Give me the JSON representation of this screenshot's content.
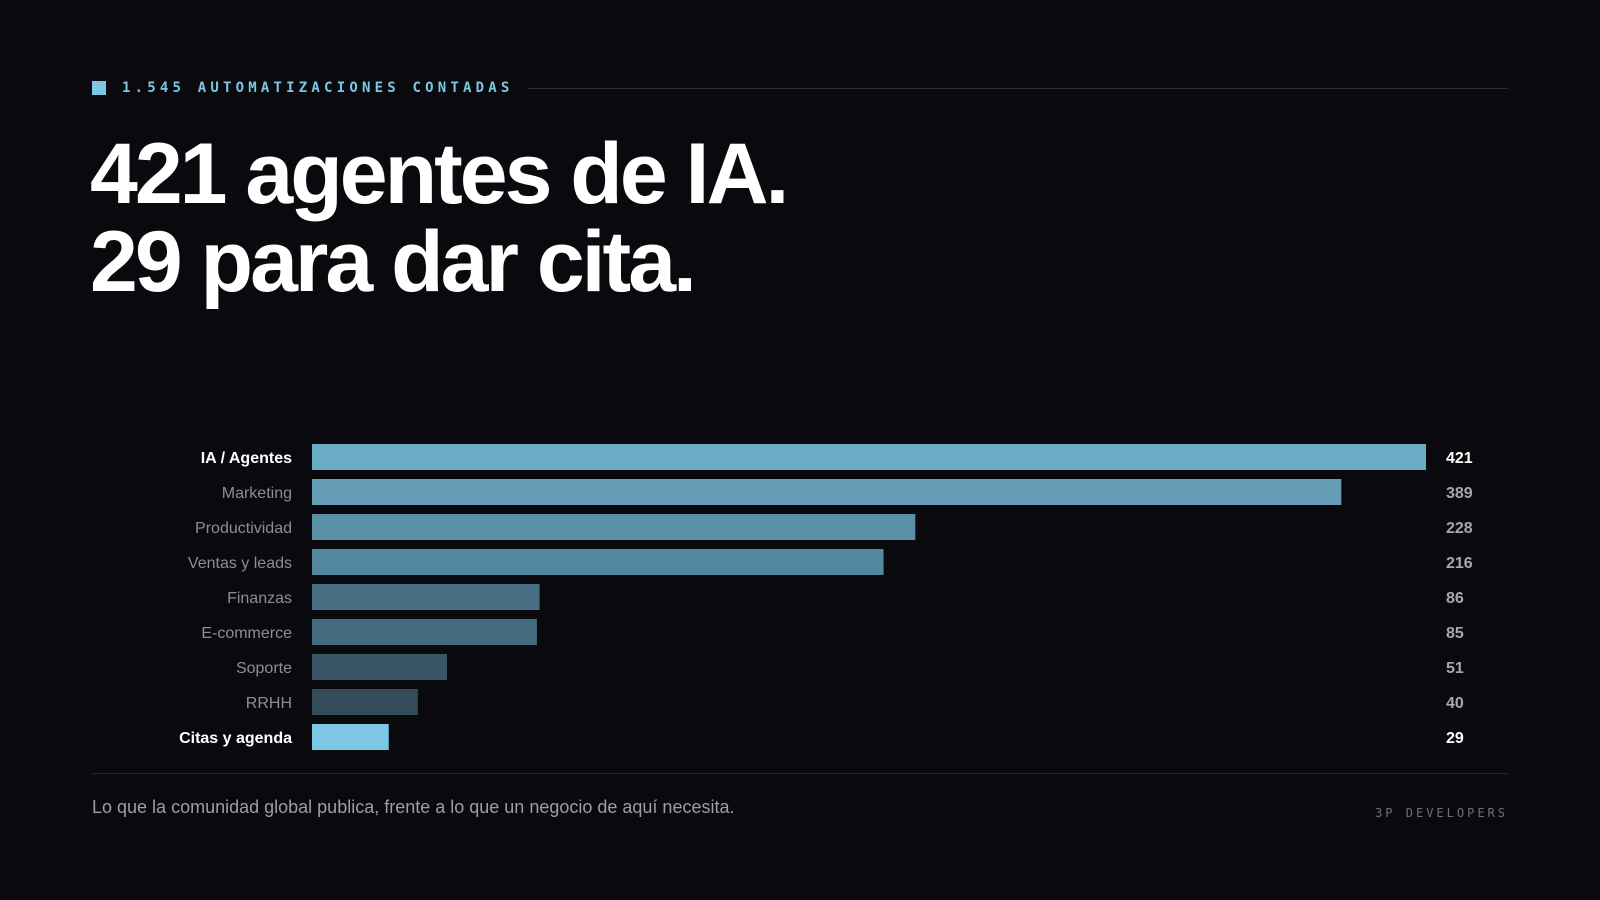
{
  "eyebrow": {
    "label": "1.545 AUTOMATIZACIONES CONTADAS"
  },
  "headline": {
    "line1": "421 agentes de IA.",
    "line2": "29 para dar cita."
  },
  "chart_data": {
    "type": "bar",
    "orientation": "horizontal",
    "categories": [
      "IA / Agentes",
      "Marketing",
      "Productividad",
      "Ventas y leads",
      "Finanzas",
      "E-commerce",
      "Soporte",
      "RRHH",
      "Citas y agenda"
    ],
    "values": [
      421,
      389,
      228,
      216,
      86,
      85,
      51,
      40,
      29
    ],
    "highlighted": [
      "IA / Agentes",
      "Citas y agenda"
    ],
    "xlim": [
      0,
      421
    ],
    "grid": false,
    "legend": "none",
    "colors": {
      "bars": [
        "#6aabc6",
        "#659eb6",
        "#5990a6",
        "#53889e",
        "#466f83",
        "#436b7f",
        "#3a5666",
        "#344b59",
        "#7cc6e6"
      ],
      "label_highlight": "#ffffff",
      "label_default": "#8c8e96",
      "value_highlight": "#ffffff",
      "value_default": "#a6a8b0"
    }
  },
  "footer": {
    "note": "Lo que la comunidad global publica, frente a lo que un negocio de aquí necesita.",
    "brand": "3P DEVELOPERS"
  }
}
